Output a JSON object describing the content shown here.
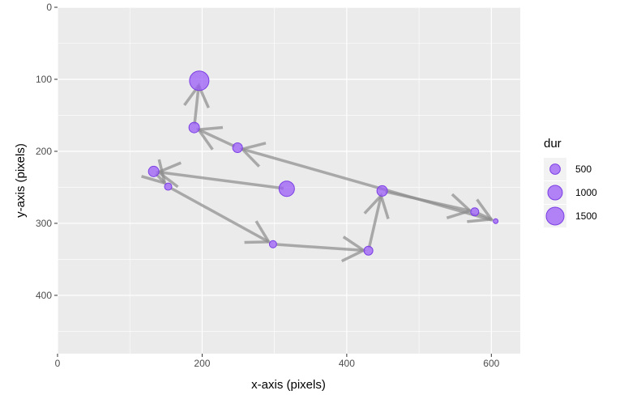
{
  "chart_data": {
    "type": "scatter",
    "xlabel": "x-axis (pixels)",
    "ylabel": "y-axis (pixels)",
    "xlim": [
      0,
      640
    ],
    "ylim": [
      0,
      481
    ],
    "y_reversed": true,
    "grid": true,
    "xticks": [
      0,
      200,
      400,
      600
    ],
    "yticks": [
      0,
      100,
      200,
      300,
      400
    ],
    "point_color": "#9b5cf6",
    "point_stroke": "#7b3fe4",
    "arrow_color": "#8c8c8c",
    "panel_color": "#ebebeb",
    "legend": {
      "title": "dur",
      "placement": "right",
      "sizes": [
        500,
        1000,
        1500
      ]
    },
    "fixations": [
      {
        "x": 317,
        "y": 252,
        "dur": 1120
      },
      {
        "x": 133,
        "y": 228,
        "dur": 520
      },
      {
        "x": 153,
        "y": 249,
        "dur": 250
      },
      {
        "x": 298,
        "y": 329,
        "dur": 250
      },
      {
        "x": 430,
        "y": 338,
        "dur": 375
      },
      {
        "x": 449,
        "y": 255,
        "dur": 520
      },
      {
        "x": 577,
        "y": 284,
        "dur": 310
      },
      {
        "x": 606,
        "y": 297,
        "dur": 110
      },
      {
        "x": 249,
        "y": 195,
        "dur": 450
      },
      {
        "x": 189,
        "y": 167,
        "dur": 520
      },
      {
        "x": 196,
        "y": 102,
        "dur": 1785
      }
    ]
  }
}
